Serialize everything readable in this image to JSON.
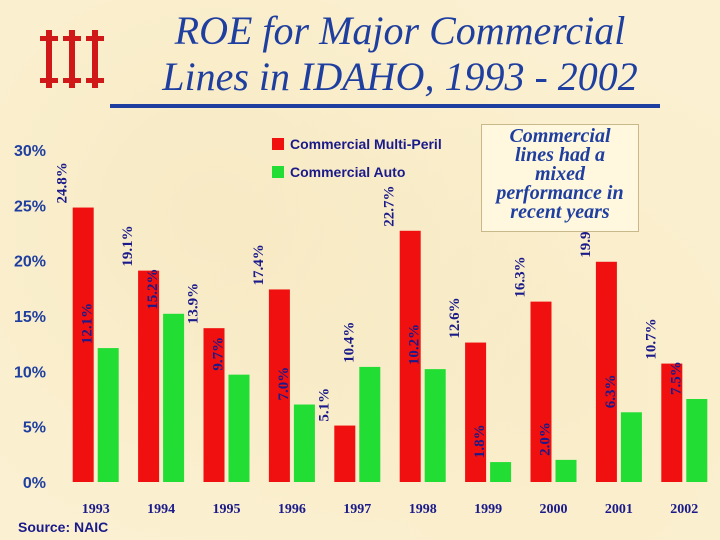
{
  "title_lines": [
    "ROE for Major Commercial",
    "Lines in IDAHO, 1993 - 2002"
  ],
  "callout_lines": [
    "Commercial",
    "lines had a",
    "mixed",
    "performance in",
    "recent years"
  ],
  "source": "Source: NAIC",
  "colors": {
    "title": "#1f3fa0",
    "multi_peril": "#f01010",
    "auto": "#22dd33",
    "logo": "#d01818"
  },
  "chart_data": {
    "type": "bar",
    "title": "ROE for Major Commercial Lines in IDAHO, 1993 - 2002",
    "categories": [
      "1993",
      "1994",
      "1995",
      "1996",
      "1997",
      "1998",
      "1999",
      "2000",
      "2001",
      "2002"
    ],
    "series": [
      {
        "name": "Commercial Multi-Peril",
        "values": [
          24.8,
          19.1,
          13.9,
          17.4,
          5.1,
          22.7,
          12.6,
          16.3,
          19.9,
          10.7
        ],
        "labels": [
          "24.8%",
          "19.1%",
          "13.9%",
          "17.4%",
          "5.1%",
          "22.7%",
          "12.6%",
          "16.3%",
          "19.9%",
          "10.7%"
        ]
      },
      {
        "name": "Commercial Auto",
        "values": [
          12.1,
          15.2,
          9.7,
          7.0,
          10.4,
          10.2,
          1.8,
          2.0,
          6.3,
          7.5
        ],
        "labels": [
          "12.1%",
          "15.2%",
          "9.7%",
          "7.0%",
          "10.4%",
          "10.2%",
          "1.8%",
          "2.0%",
          "6.3%",
          "7.5%"
        ]
      }
    ],
    "yticks": [
      "0%",
      "5%",
      "10%",
      "15%",
      "20%",
      "25%",
      "30%"
    ],
    "ytick_values": [
      0,
      5,
      10,
      15,
      20,
      25,
      30
    ],
    "ylim": [
      0,
      30
    ],
    "xlabel": "",
    "ylabel": "",
    "legend": "top-center"
  }
}
